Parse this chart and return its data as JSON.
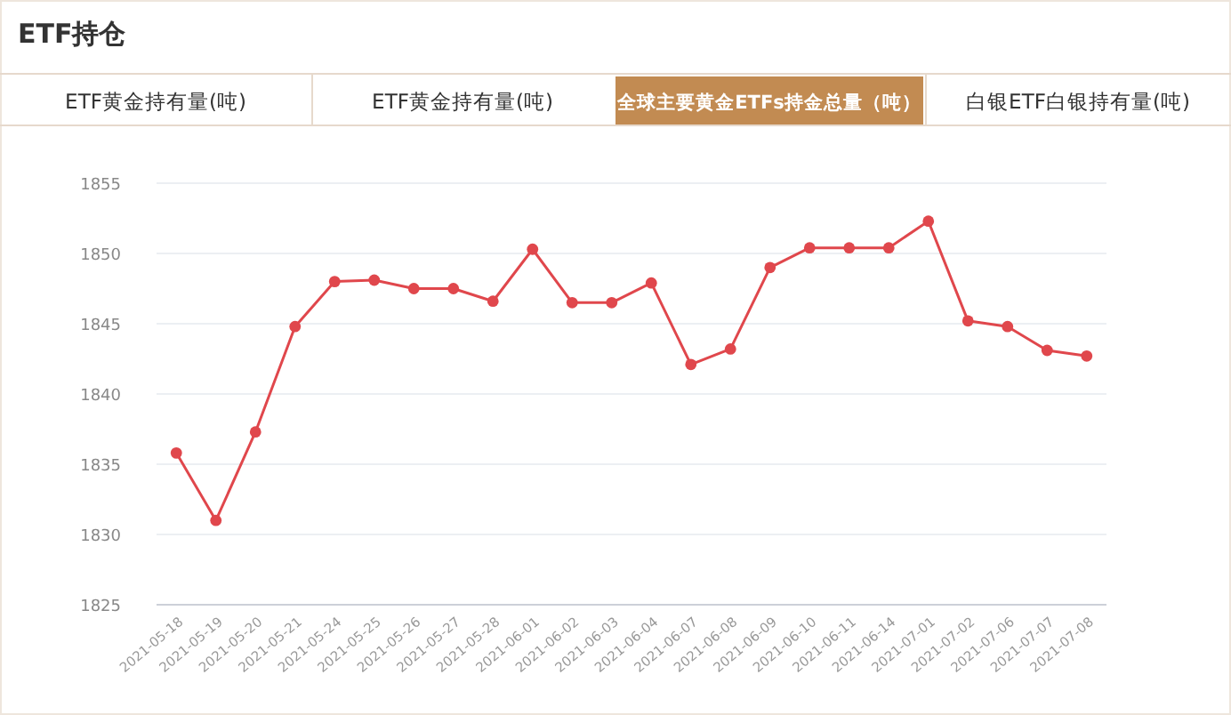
{
  "chart_data": {
    "type": "line",
    "title": "ETF持仓",
    "subtitle": "全球主要黄金ETFs持金总量（吨）",
    "annotations": [
      "ETF黄金持有量(吨)",
      "ETF黄金持有量(吨)",
      "白银ETF白银持有量(吨)"
    ],
    "categories": [
      "2021-05-18",
      "2021-05-19",
      "2021-05-20",
      "2021-05-21",
      "2021-05-24",
      "2021-05-25",
      "2021-05-26",
      "2021-05-27",
      "2021-05-28",
      "2021-06-01",
      "2021-06-02",
      "2021-06-03",
      "2021-06-04",
      "2021-06-07",
      "2021-06-08",
      "2021-06-09",
      "2021-06-10",
      "2021-06-11",
      "2021-06-14",
      "2021-07-01",
      "2021-07-02",
      "2021-07-06",
      "2021-07-07",
      "2021-07-08"
    ],
    "series": [
      {
        "color": "#e0474c",
        "values": [
          1835.8,
          1831.0,
          1837.3,
          1844.8,
          1848.0,
          1848.1,
          1847.5,
          1847.5,
          1846.6,
          1850.3,
          1846.5,
          1846.5,
          1847.9,
          1842.1,
          1843.2,
          1849.0,
          1850.4,
          1850.4,
          1850.4,
          1852.3,
          1845.2,
          1844.8,
          1843.1,
          1842.7
        ]
      }
    ],
    "ylim": [
      1825,
      1855
    ],
    "yticks": [
      1825,
      1830,
      1835,
      1840,
      1845,
      1850,
      1855
    ],
    "grid": "y",
    "marker": "circle",
    "line_style": "solid"
  }
}
